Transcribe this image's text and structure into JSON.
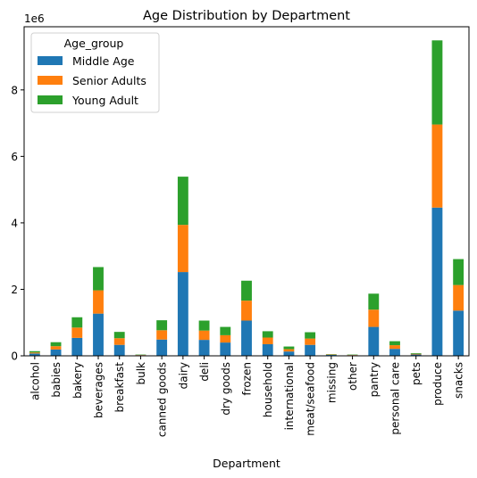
{
  "chart_data": {
    "type": "bar",
    "stacked": true,
    "title": "Age Distribution by Department",
    "xlabel": "Department",
    "ylabel": "",
    "y_offset_label": "1e6",
    "y_multiplier": 1000000,
    "ylim": [
      0,
      9.9
    ],
    "yticks": [
      "0",
      "2",
      "4",
      "6",
      "8"
    ],
    "ytick_values": [
      0,
      2,
      4,
      6,
      8
    ],
    "grid": false,
    "legend": {
      "title": "Age_group",
      "placement": "top-left"
    },
    "categories": [
      "alcohol",
      "babies",
      "bakery",
      "beverages",
      "breakfast",
      "bulk",
      "canned goods",
      "dairy",
      "deli",
      "dry goods",
      "frozen",
      "household",
      "international",
      "meat/seafood",
      "missing",
      "other",
      "pantry",
      "personal care",
      "pets",
      "produce",
      "snacks"
    ],
    "series": [
      {
        "name": "Middle Age",
        "color": "#1f77b4",
        "values": [
          0.07,
          0.19,
          0.54,
          1.27,
          0.33,
          0.02,
          0.49,
          2.52,
          0.48,
          0.4,
          1.06,
          0.35,
          0.13,
          0.33,
          0.03,
          0.02,
          0.87,
          0.21,
          0.04,
          4.46,
          1.36
        ]
      },
      {
        "name": "Senior Adults",
        "color": "#ff7f0e",
        "values": [
          0.03,
          0.1,
          0.31,
          0.7,
          0.2,
          0.01,
          0.28,
          1.42,
          0.28,
          0.22,
          0.6,
          0.2,
          0.07,
          0.19,
          0.01,
          0.01,
          0.52,
          0.11,
          0.02,
          2.5,
          0.77
        ]
      },
      {
        "name": "Young Adult",
        "color": "#2ca02c",
        "values": [
          0.04,
          0.12,
          0.31,
          0.7,
          0.19,
          0.01,
          0.3,
          1.45,
          0.3,
          0.25,
          0.6,
          0.19,
          0.08,
          0.19,
          0.01,
          0.01,
          0.48,
          0.12,
          0.02,
          2.53,
          0.78
        ]
      }
    ]
  }
}
